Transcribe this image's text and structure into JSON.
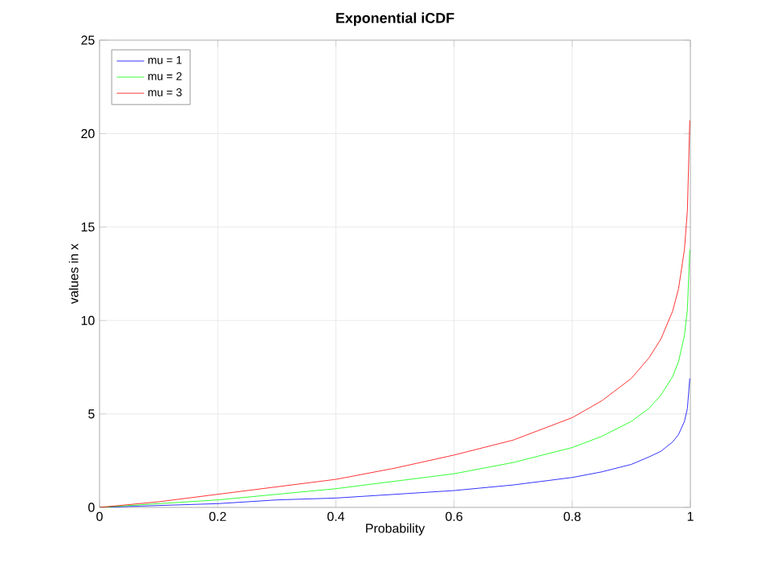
{
  "chart_data": {
    "type": "line",
    "title": "Exponential iCDF",
    "xlabel": "Probability",
    "ylabel": "values in x",
    "x": [
      0,
      0.1,
      0.2,
      0.3,
      0.4,
      0.5,
      0.6,
      0.7,
      0.8,
      0.85,
      0.9,
      0.93,
      0.95,
      0.97,
      0.98,
      0.99,
      0.995,
      0.999
    ],
    "series": [
      {
        "name": "mu = 1",
        "color": "#0000ff",
        "values": [
          0,
          0.1,
          0.2,
          0.4,
          0.5,
          0.7,
          0.9,
          1.2,
          1.6,
          1.9,
          2.3,
          2.7,
          3.0,
          3.5,
          3.9,
          4.6,
          5.3,
          6.9
        ]
      },
      {
        "name": "mu = 2",
        "color": "#00ff00",
        "values": [
          0,
          0.2,
          0.4,
          0.7,
          1.0,
          1.4,
          1.8,
          2.4,
          3.2,
          3.8,
          4.6,
          5.3,
          6.0,
          7.0,
          7.8,
          9.2,
          10.6,
          13.8
        ]
      },
      {
        "name": "mu = 3",
        "color": "#ff0000",
        "values": [
          0,
          0.3,
          0.7,
          1.1,
          1.5,
          2.1,
          2.8,
          3.6,
          4.8,
          5.7,
          6.9,
          8.0,
          9.0,
          10.5,
          11.7,
          13.8,
          15.9,
          20.7
        ]
      }
    ],
    "xlim": [
      0,
      1
    ],
    "ylim": [
      0,
      25
    ],
    "xticks": [
      0,
      0.2,
      0.4,
      0.6,
      0.8,
      1
    ],
    "yticks": [
      0,
      5,
      10,
      15,
      20,
      25
    ],
    "grid": true,
    "legend": "top left",
    "marker": "none",
    "line_style": "solid"
  }
}
